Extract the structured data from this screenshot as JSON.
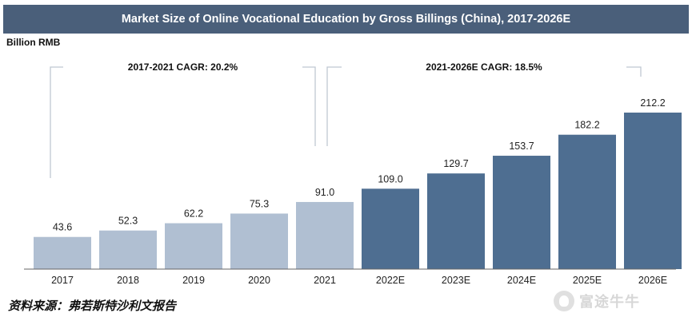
{
  "title": "Market Size of Online Vocational Education by Gross Billings (China), 2017-2026E",
  "unit_label": "Billion RMB",
  "source": "资料来源：弗若斯特沙利文报告",
  "watermark": "富途牛牛",
  "chart_data": {
    "type": "bar",
    "title": "Market Size of Online Vocational Education by Gross Billings (China), 2017-2026E",
    "ylabel": "Billion RMB",
    "xlabel": "",
    "ylim": [
      0,
      212.2
    ],
    "grid": false,
    "categories": [
      "2017",
      "2018",
      "2019",
      "2020",
      "2021",
      "2022E",
      "2023E",
      "2024E",
      "2025E",
      "2026E"
    ],
    "values": [
      43.6,
      52.3,
      62.2,
      75.3,
      91.0,
      109.0,
      129.7,
      153.7,
      182.2,
      212.2
    ],
    "value_labels": [
      "43.6",
      "52.3",
      "62.2",
      "75.3",
      "91.0",
      "109.0",
      "129.7",
      "153.7",
      "182.2",
      "212.2"
    ],
    "colors": {
      "historical": "#b0bfd2",
      "forecast": "#4e6e91"
    },
    "forecast_start_index": 5,
    "annotations": [
      {
        "label": "2017-2021 CAGR: 20.2%",
        "from_index": 0,
        "to_index": 4
      },
      {
        "label": "2021-2026E CAGR: 18.5%",
        "from_index": 4,
        "to_index": 9
      }
    ]
  }
}
